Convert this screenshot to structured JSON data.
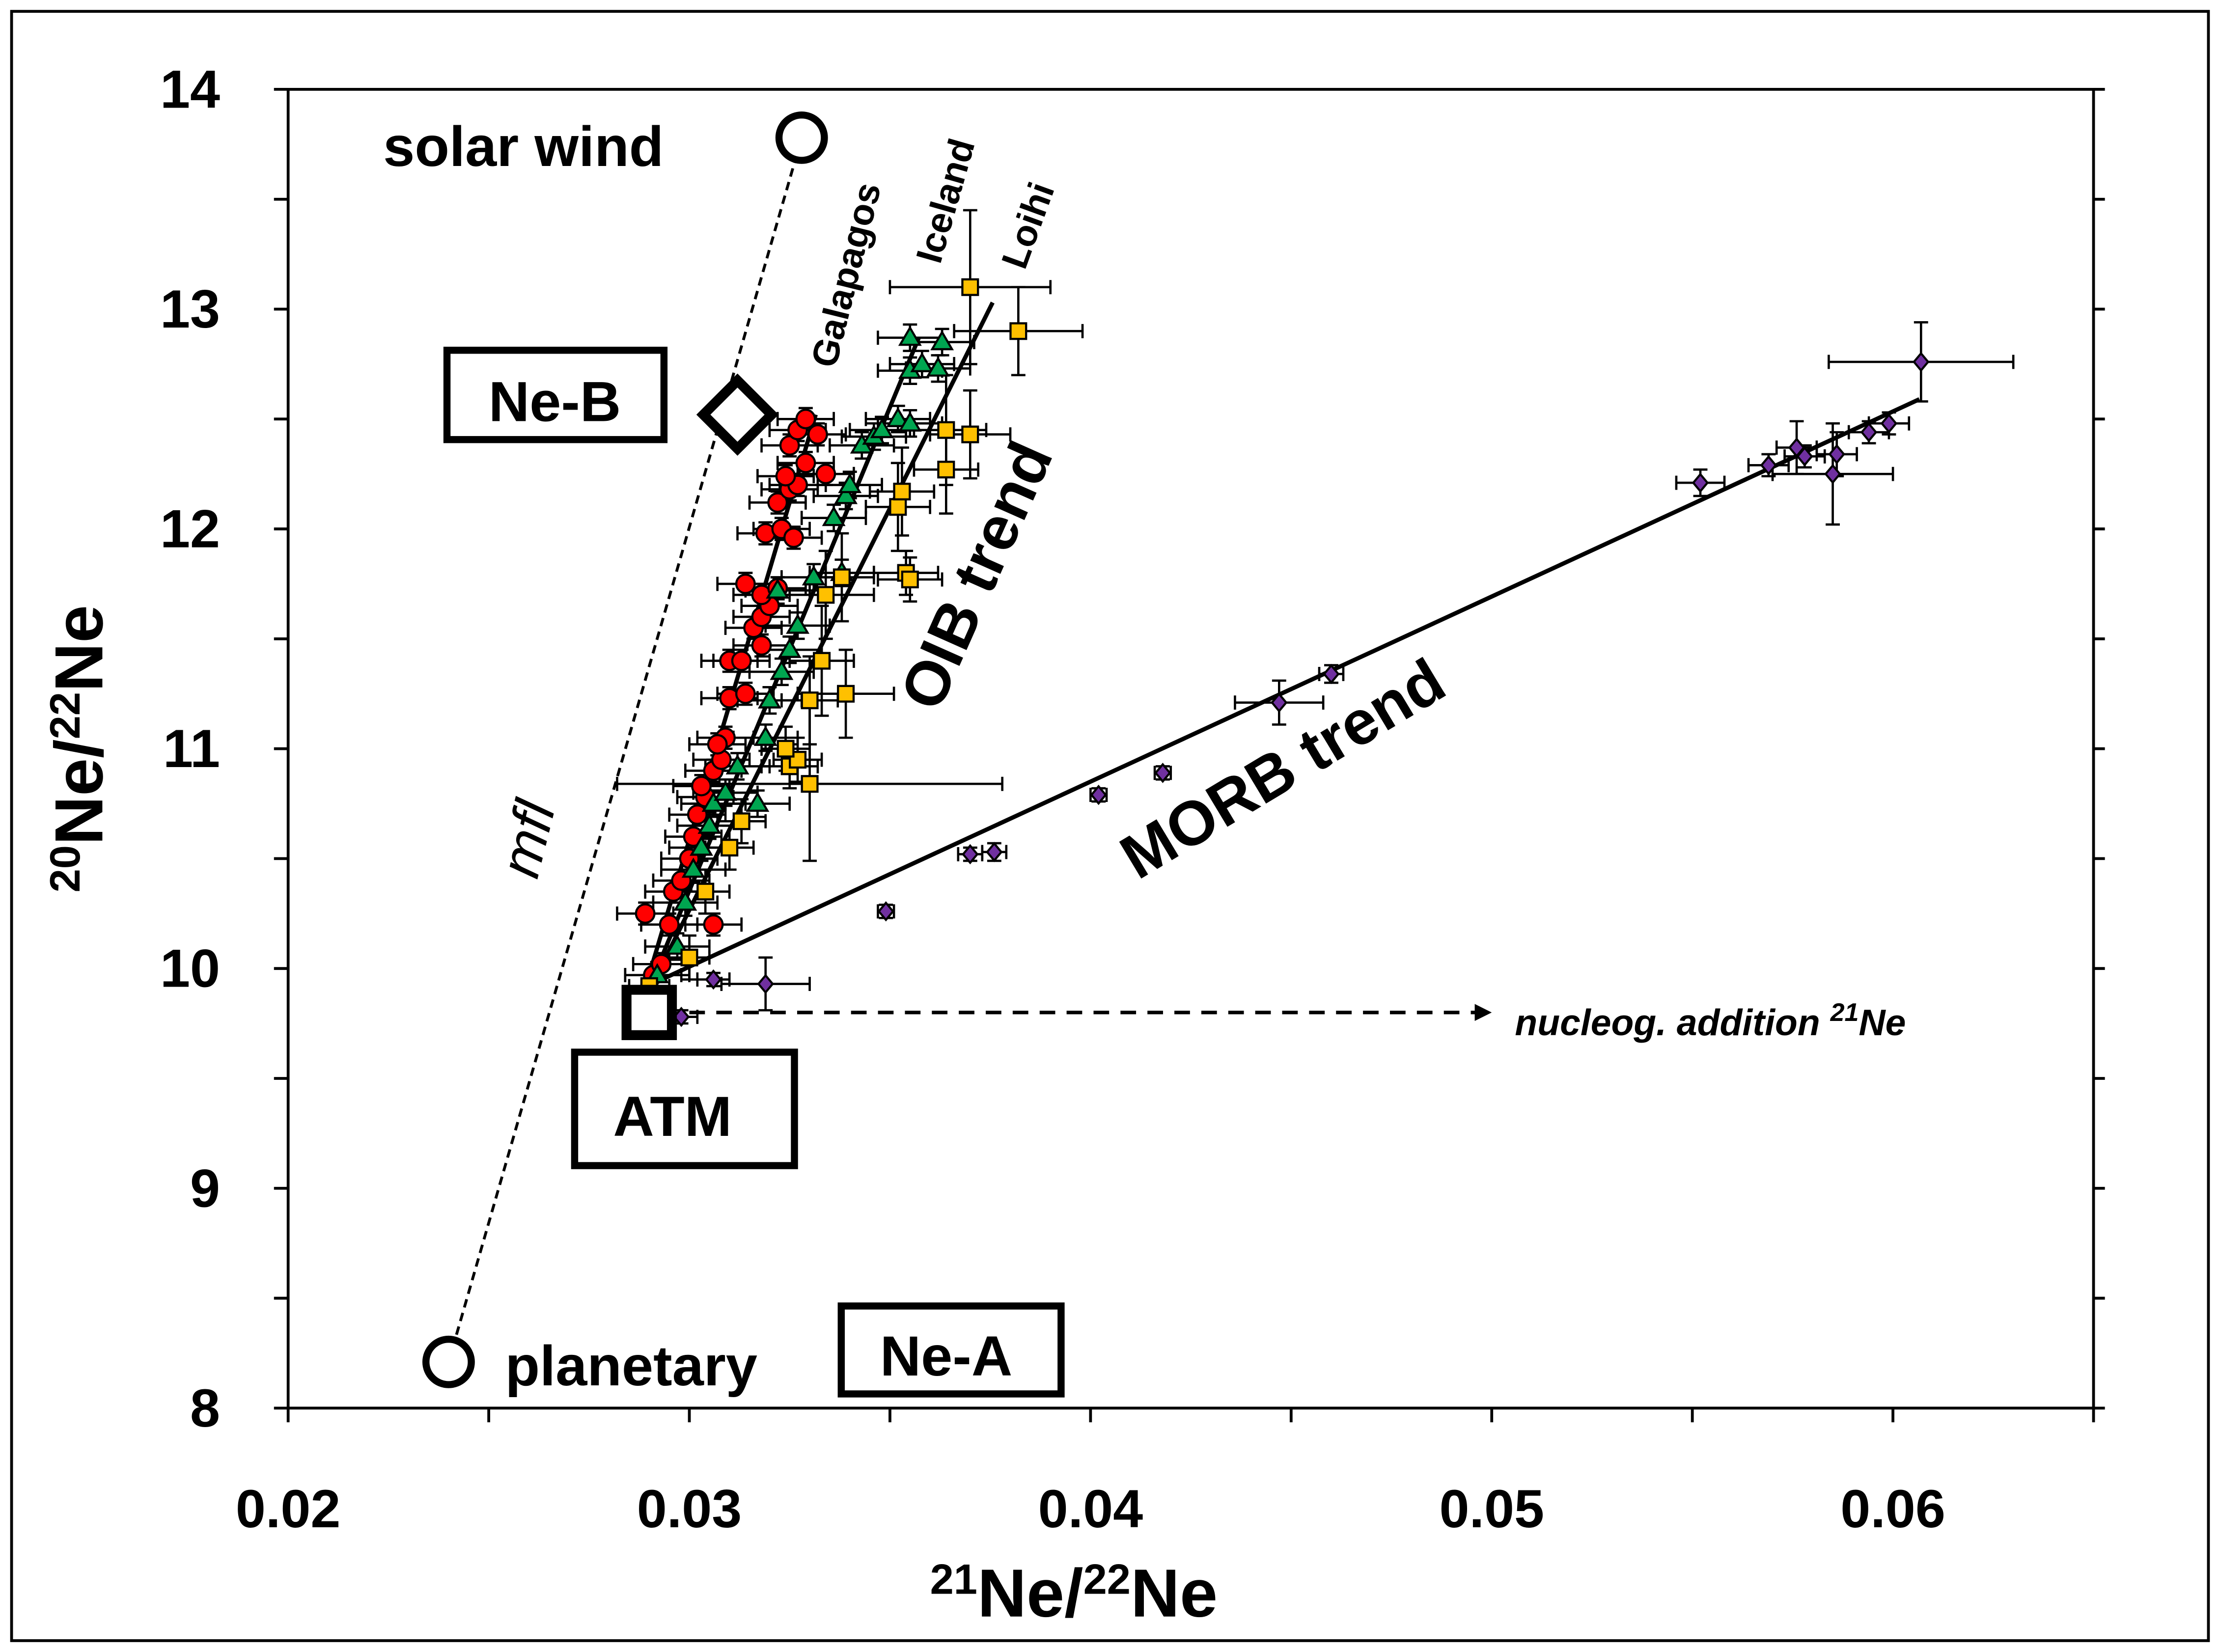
{
  "chart_data": {
    "type": "scatter",
    "xlabel": {
      "sup1": "21",
      "t1": "Ne/",
      "sup2": "22",
      "t2": "Ne"
    },
    "ylabel": {
      "sup1": "20",
      "t1": "Ne/",
      "sup2": "22",
      "t2": "Ne"
    },
    "xlim": [
      0.02,
      0.065
    ],
    "ylim": [
      8,
      14
    ],
    "xticks": [
      "0.02",
      "0.03",
      "0.04",
      "0.05",
      "0.06"
    ],
    "yticks": [
      "8",
      "9",
      "10",
      "11",
      "12",
      "13",
      "14"
    ],
    "grid": false,
    "series": [
      {
        "name": "Galapagos",
        "marker": "circle",
        "color": "#ff0000",
        "points": [
          [
            0.0291,
            9.97
          ],
          [
            0.0293,
            10.02
          ],
          [
            0.0289,
            10.25
          ],
          [
            0.0295,
            10.2
          ],
          [
            0.0296,
            10.35
          ],
          [
            0.0298,
            10.4
          ],
          [
            0.03,
            10.5
          ],
          [
            0.0306,
            10.2
          ],
          [
            0.0301,
            10.6
          ],
          [
            0.0302,
            10.7
          ],
          [
            0.0304,
            10.78
          ],
          [
            0.0303,
            10.83
          ],
          [
            0.0306,
            10.9
          ],
          [
            0.0308,
            10.95
          ],
          [
            0.0309,
            11.05
          ],
          [
            0.0307,
            11.02
          ],
          [
            0.031,
            11.23
          ],
          [
            0.0314,
            11.25
          ],
          [
            0.031,
            11.4
          ],
          [
            0.0313,
            11.4
          ],
          [
            0.0318,
            11.47
          ],
          [
            0.0316,
            11.55
          ],
          [
            0.0318,
            11.6
          ],
          [
            0.032,
            11.65
          ],
          [
            0.0314,
            11.75
          ],
          [
            0.0318,
            11.7
          ],
          [
            0.0322,
            11.73
          ],
          [
            0.0319,
            11.98
          ],
          [
            0.0323,
            12.0
          ],
          [
            0.0326,
            11.96
          ],
          [
            0.0322,
            12.12
          ],
          [
            0.0325,
            12.18
          ],
          [
            0.0327,
            12.2
          ],
          [
            0.0324,
            12.24
          ],
          [
            0.0329,
            12.3
          ],
          [
            0.0334,
            12.25
          ],
          [
            0.0325,
            12.38
          ],
          [
            0.0327,
            12.45
          ],
          [
            0.0329,
            12.5
          ],
          [
            0.0332,
            12.43
          ]
        ],
        "xerr": 0.0007,
        "yerr": 0.05,
        "trend": [
          [
            0.02894,
            9.935
          ],
          [
            0.03315,
            12.52
          ]
        ]
      },
      {
        "name": "Iceland",
        "marker": "triangle",
        "color": "#00a550",
        "points": [
          [
            0.0292,
            9.97
          ],
          [
            0.0297,
            10.1
          ],
          [
            0.0299,
            10.3
          ],
          [
            0.0301,
            10.45
          ],
          [
            0.0303,
            10.55
          ],
          [
            0.0305,
            10.65
          ],
          [
            0.0306,
            10.75
          ],
          [
            0.0309,
            10.8
          ],
          [
            0.0312,
            10.92
          ],
          [
            0.0317,
            10.75
          ],
          [
            0.0319,
            11.05
          ],
          [
            0.032,
            11.22
          ],
          [
            0.0323,
            11.35
          ],
          [
            0.0325,
            11.45
          ],
          [
            0.0327,
            11.56
          ],
          [
            0.0322,
            11.72
          ],
          [
            0.0331,
            11.78
          ],
          [
            0.0338,
            11.8
          ],
          [
            0.0336,
            12.05
          ],
          [
            0.0339,
            12.15
          ],
          [
            0.034,
            12.2
          ],
          [
            0.0343,
            12.38
          ],
          [
            0.0346,
            12.42
          ],
          [
            0.0348,
            12.45
          ],
          [
            0.0352,
            12.5
          ],
          [
            0.0355,
            12.48
          ],
          [
            0.0355,
            12.72
          ],
          [
            0.0358,
            12.75
          ],
          [
            0.0362,
            12.73
          ],
          [
            0.0355,
            12.87
          ],
          [
            0.0363,
            12.85
          ]
        ],
        "xerr": 0.0008,
        "yerr": 0.06,
        "trend": [
          [
            0.02908,
            9.95
          ],
          [
            0.03572,
            12.87
          ]
        ]
      },
      {
        "name": "Loihi",
        "marker": "square",
        "color": "#ffc000",
        "points": [
          [
            0.029,
            9.92,
            0.0005,
            0.05
          ],
          [
            0.03,
            10.05,
            0.0005,
            0.1
          ],
          [
            0.0304,
            10.35,
            0.0006,
            0.1
          ],
          [
            0.031,
            10.55,
            0.0006,
            0.1
          ],
          [
            0.0313,
            10.67,
            0.0006,
            0.1
          ],
          [
            0.0325,
            10.92,
            0.0007,
            0.1
          ],
          [
            0.0327,
            10.95,
            0.0006,
            0.1
          ],
          [
            0.033,
            10.84,
            0.0048,
            0.35
          ],
          [
            0.0324,
            11.0,
            0.0006,
            0.1
          ],
          [
            0.033,
            11.22,
            0.0007,
            0.2
          ],
          [
            0.0339,
            11.25,
            0.0012,
            0.2
          ],
          [
            0.0333,
            11.4,
            0.0008,
            0.25
          ],
          [
            0.0334,
            11.7,
            0.0012,
            0.2
          ],
          [
            0.0338,
            11.78,
            0.0008,
            0.2
          ],
          [
            0.0354,
            11.8,
            0.0008,
            0.1
          ],
          [
            0.0355,
            11.77,
            0.0008,
            0.1
          ],
          [
            0.0352,
            12.1,
            0.0008,
            0.2
          ],
          [
            0.0353,
            12.17,
            0.0008,
            0.2
          ],
          [
            0.0364,
            12.27,
            0.0008,
            0.2
          ],
          [
            0.0364,
            12.45,
            0.001,
            0.25
          ],
          [
            0.037,
            12.43,
            0.001,
            0.2
          ],
          [
            0.0382,
            12.9,
            0.0016,
            0.2
          ],
          [
            0.037,
            13.1,
            0.002,
            0.35
          ]
        ],
        "trend": [
          [
            0.02919,
            9.97
          ],
          [
            0.03756,
            13.03
          ]
        ]
      },
      {
        "name": "MORB",
        "marker": "diamond",
        "color": "#7030a0",
        "points": [
          [
            0.0298,
            9.78,
            0.0004,
            0.03
          ],
          [
            0.0306,
            9.95,
            0.0004,
            0.03
          ],
          [
            0.0319,
            9.93,
            0.0011,
            0.12
          ],
          [
            0.0349,
            10.26,
            0.0002,
            0.03
          ],
          [
            0.037,
            10.52,
            0.0003,
            0.03
          ],
          [
            0.0376,
            10.53,
            0.0003,
            0.04
          ],
          [
            0.0402,
            10.79,
            0.0002,
            0.03
          ],
          [
            0.0418,
            10.89,
            0.0002,
            0.03
          ],
          [
            0.0447,
            11.21,
            0.0011,
            0.1
          ],
          [
            0.046,
            11.34,
            0.0003,
            0.04
          ],
          [
            0.0552,
            12.21,
            0.0006,
            0.06
          ],
          [
            0.0569,
            12.29,
            0.0005,
            0.05
          ],
          [
            0.0576,
            12.37,
            0.0005,
            0.12
          ],
          [
            0.0578,
            12.33,
            0.0005,
            0.05
          ],
          [
            0.0585,
            12.25,
            0.0015,
            0.23
          ],
          [
            0.0586,
            12.34,
            0.0005,
            0.1
          ],
          [
            0.0594,
            12.44,
            0.0005,
            0.05
          ],
          [
            0.0599,
            12.48,
            0.0005,
            0.05
          ],
          [
            0.0607,
            12.76,
            0.0023,
            0.18
          ]
        ],
        "trend": [
          [
            0.02919,
            9.94
          ],
          [
            0.06066,
            12.59
          ]
        ]
      }
    ],
    "mfl_line": [
      [
        0.024,
        8.21
      ],
      [
        0.0328,
        13.78
      ]
    ],
    "endmembers": {
      "solar_wind": {
        "label": "solar wind",
        "x": 0.0328,
        "y": 13.78
      },
      "planetary": {
        "label": "planetary",
        "x": 0.024,
        "y": 8.21
      },
      "ne_b": {
        "label": "Ne-B",
        "x": 0.0312,
        "y": 12.52
      },
      "ne_a": {
        "label": "Ne-A"
      },
      "atm": {
        "label": "ATM",
        "x": 0.029,
        "y": 9.8
      }
    },
    "nucleog_arrow": {
      "from": [
        0.03,
        9.8
      ],
      "to": [
        0.05,
        9.8
      ]
    },
    "annotations": {
      "mfl": "mfl",
      "galapagos": "Galapagos",
      "iceland": "Iceland",
      "loihi": "Loihi",
      "oib_trend": "OIB trend",
      "morb_trend": "MORB trend",
      "nucleog_text": "nucleog. addition ",
      "nucleog_sup": "21",
      "nucleog_ne": "Ne"
    }
  }
}
